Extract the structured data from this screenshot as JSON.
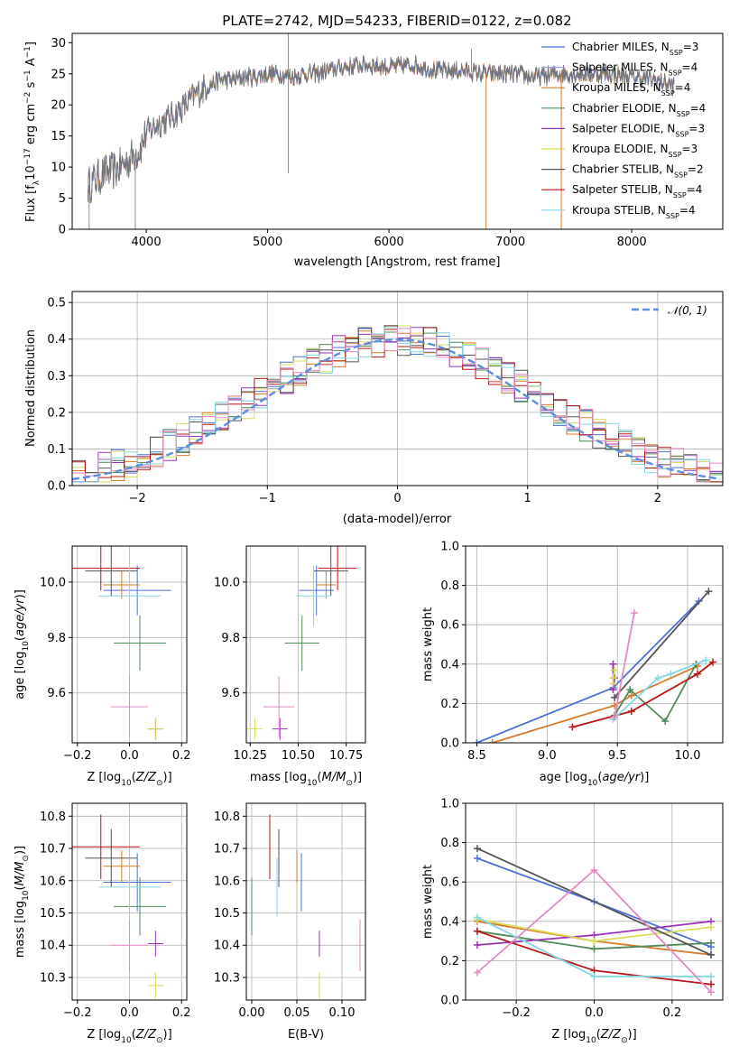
{
  "figure_title": "PLATE=2742, MJD=54233, FIBERID=0122, z=0.082",
  "colors": {
    "chabrier_miles": "#4c72d8",
    "salpeter_miles": "#9aa7d6",
    "kroupa_miles": "#d87b2a",
    "chabrier_elodie": "#4f8b5a",
    "salpeter_elodie": "#9a32b8",
    "kroupa_elodie": "#d8dc58",
    "chabrier_stelib": "#555555",
    "salpeter_stelib": "#b81616",
    "kroupa_stelib": "#86d6e3",
    "pink": "#e28ac3",
    "normal": "#5b8fe0"
  },
  "chart_data": [
    {
      "id": "spectrum",
      "type": "line",
      "xlabel": "wavelength [Angstrom, rest frame]",
      "ylabel": "Flux [fλ10⁻¹⁷ erg cm⁻² s⁻¹ A⁻¹]",
      "xlim": [
        3390,
        8750
      ],
      "ylim": [
        0,
        31.5
      ],
      "xticks": [
        4000,
        5000,
        6000,
        7000,
        8000
      ],
      "yticks": [
        0,
        5,
        10,
        15,
        20,
        25,
        30
      ],
      "spectrum_anchors": [
        [
          3520,
          7
        ],
        [
          3650,
          9
        ],
        [
          3750,
          9.5
        ],
        [
          3850,
          11
        ],
        [
          3950,
          13
        ],
        [
          4000,
          15.5
        ],
        [
          4100,
          17
        ],
        [
          4200,
          18
        ],
        [
          4300,
          19.5
        ],
        [
          4400,
          21.5
        ],
        [
          4500,
          23
        ],
        [
          4600,
          24
        ],
        [
          4700,
          24
        ],
        [
          4800,
          24.5
        ],
        [
          4900,
          24.5
        ],
        [
          5000,
          25
        ],
        [
          5100,
          25
        ],
        [
          5200,
          24.5
        ],
        [
          5300,
          25
        ],
        [
          5400,
          25
        ],
        [
          5500,
          25.5
        ],
        [
          5600,
          26
        ],
        [
          5800,
          26.5
        ],
        [
          6000,
          26
        ],
        [
          6200,
          26.5
        ],
        [
          6400,
          25.5
        ],
        [
          6600,
          25.5
        ],
        [
          6800,
          25
        ],
        [
          7000,
          25
        ],
        [
          7200,
          24.5
        ],
        [
          7400,
          25
        ],
        [
          7600,
          25
        ],
        [
          7800,
          25
        ],
        [
          8000,
          24.5
        ],
        [
          8200,
          24
        ],
        [
          8350,
          23
        ]
      ],
      "legend": [
        {
          "label": "Chabrier MILES, N",
          "sub": "SSP",
          "count": "=3",
          "color": "#4c72d8"
        },
        {
          "label": "Salpeter MILES, N",
          "sub": "SSP",
          "count": "=4",
          "color": "#9aa7d6"
        },
        {
          "label": "Kroupa MILES, N",
          "sub": "SSP",
          "count": "=4",
          "color": "#d87b2a"
        },
        {
          "label": "Chabrier ELODIE, N",
          "sub": "SSP",
          "count": "=4",
          "color": "#4f8b5a"
        },
        {
          "label": "Salpeter ELODIE, N",
          "sub": "SSP",
          "count": "=3",
          "color": "#9a32b8"
        },
        {
          "label": "Kroupa ELODIE, N",
          "sub": "SSP",
          "count": "=3",
          "color": "#d8dc58"
        },
        {
          "label": "Chabrier STELIB, N",
          "sub": "SSP",
          "count": "=2",
          "color": "#555555"
        },
        {
          "label": "Salpeter STELIB, N",
          "sub": "SSP",
          "count": "=4",
          "color": "#b81616"
        },
        {
          "label": "Kroupa STELIB, N",
          "sub": "SSP",
          "count": "=4",
          "color": "#86d6e3"
        }
      ]
    },
    {
      "id": "residuals",
      "type": "line",
      "xlabel": "(data-model)/error",
      "ylabel": "Normed distribution",
      "xlim": [
        -2.5,
        2.5
      ],
      "ylim": [
        0,
        0.53
      ],
      "xticks": [
        -2,
        -1,
        0,
        1,
        2
      ],
      "yticks": [
        0.0,
        0.1,
        0.2,
        0.3,
        0.4,
        0.5
      ],
      "legend_label": "𝒩(0, 1)",
      "bin_width": 0.1,
      "grid": true
    },
    {
      "id": "age_vs_Z",
      "type": "scatter",
      "xlabel": "Z [log₁₀(Z/Z⊙)]",
      "ylabel": "age  [log₁₀(age/yr)]",
      "xlim": [
        -0.22,
        0.22
      ],
      "ylim": [
        9.42,
        10.13
      ],
      "xticks": [
        -0.2,
        0.0,
        0.2
      ],
      "yticks": [
        9.6,
        9.8,
        10.0
      ],
      "grid": true
    },
    {
      "id": "age_vs_mass",
      "type": "scatter",
      "xlabel": "mass [log₁₀(M/M⊙)]",
      "xlim": [
        10.23,
        10.85
      ],
      "ylim": [
        9.42,
        10.13
      ],
      "xticks": [
        10.25,
        10.5,
        10.75
      ],
      "yticks": [
        9.6,
        9.8,
        10.0
      ],
      "grid": true
    },
    {
      "id": "weight_vs_age",
      "type": "line",
      "xlabel": "age  [log₁₀(age/yr)]",
      "ylabel": "mass weight",
      "xlim": [
        8.42,
        10.25
      ],
      "ylim": [
        0,
        1.0
      ],
      "xticks": [
        8.5,
        9.0,
        9.5,
        10.0
      ],
      "yticks": [
        0.0,
        0.2,
        0.4,
        0.6,
        0.8,
        1.0
      ],
      "grid": true
    },
    {
      "id": "mass_vs_Z",
      "type": "scatter",
      "xlabel": "Z [log₁₀(Z/Z⊙)]",
      "ylabel": "mass [log₁₀(M/M⊙)]",
      "xlim": [
        -0.22,
        0.22
      ],
      "ylim": [
        10.23,
        10.84
      ],
      "xticks": [
        -0.2,
        0.0,
        0.2
      ],
      "yticks": [
        10.3,
        10.4,
        10.5,
        10.6,
        10.7,
        10.8
      ],
      "grid": true
    },
    {
      "id": "mass_vs_ebv",
      "type": "scatter",
      "xlabel": "E(B-V)",
      "xlim": [
        -0.006,
        0.126
      ],
      "ylim": [
        10.23,
        10.84
      ],
      "xticks": [
        0.0,
        0.05,
        0.1
      ],
      "yticks": [
        10.3,
        10.4,
        10.5,
        10.6,
        10.7,
        10.8
      ],
      "grid": true
    },
    {
      "id": "weight_vs_Z",
      "type": "line",
      "xlabel": "Z [log₁₀(Z/Z⊙)]",
      "ylabel": "mass weight",
      "xlim": [
        -0.33,
        0.33
      ],
      "ylim": [
        0,
        1.0
      ],
      "xticks": [
        -0.2,
        0.0,
        0.2
      ],
      "yticks": [
        0.0,
        0.2,
        0.4,
        0.6,
        0.8,
        1.0
      ],
      "grid": true
    }
  ],
  "models": [
    {
      "color": "#4c72d8",
      "age": 9.97,
      "age_err": 0.09,
      "Z": 0.03,
      "Z_err": 0.13,
      "mass": 10.595,
      "mass_err": 0.09,
      "ebv": 0.055,
      "ebv_err": 0.09,
      "age_w": [
        [
          8.5,
          0.0
        ],
        [
          9.47,
          0.28
        ],
        [
          10.08,
          0.72
        ]
      ],
      "Z_w": [
        [
          -0.3,
          0.72
        ],
        [
          0.0,
          0.5
        ],
        [
          0.3,
          0.27
        ]
      ]
    },
    {
      "color": "#d87b2a",
      "age": 9.99,
      "age_err": 0.05,
      "Z": -0.03,
      "Z_err": 0.07,
      "mass": 10.645,
      "mass_err": 0.05,
      "ebv": 0.05,
      "ebv_err": 0.05,
      "age_w": [
        [
          8.61,
          0.0
        ],
        [
          9.48,
          0.19
        ],
        [
          9.6,
          0.24
        ],
        [
          10.07,
          0.39
        ]
      ],
      "Z_w": [
        [
          -0.3,
          0.4
        ],
        [
          0.0,
          0.3
        ],
        [
          0.3,
          0.23
        ]
      ]
    },
    {
      "color": "#4f8b5a",
      "age": 9.78,
      "age_err": 0.1,
      "Z": 0.04,
      "Z_err": 0.1,
      "mass": 10.52,
      "mass_err": 0.09,
      "ebv": 0.0,
      "ebv_err": 0.08,
      "age_w": [
        [
          9.48,
          0.14
        ],
        [
          9.59,
          0.27
        ],
        [
          9.84,
          0.11
        ],
        [
          10.06,
          0.4
        ]
      ],
      "Z_w": [
        [
          -0.3,
          0.35
        ],
        [
          0.0,
          0.26
        ],
        [
          0.3,
          0.29
        ]
      ]
    },
    {
      "color": "#9a32b8",
      "age": 9.47,
      "age_err": 0.04,
      "Z": 0.1,
      "Z_err": 0.03,
      "mass": 10.405,
      "mass_err": 0.04,
      "ebv": 0.075,
      "ebv_err": 0.04,
      "age_w": [
        [
          9.47,
          0.4
        ],
        [
          9.47,
          0.27
        ],
        [
          9.48,
          0.33
        ]
      ],
      "Z_w": [
        [
          -0.3,
          0.28
        ],
        [
          0.0,
          0.33
        ],
        [
          0.3,
          0.4
        ]
      ]
    },
    {
      "color": "#d8dc58",
      "age": 9.47,
      "age_err": 0.04,
      "Z": 0.1,
      "Z_err": 0.03,
      "mass": 10.275,
      "mass_err": 0.04,
      "ebv": 0.075,
      "ebv_err": 0.04,
      "age_w": [
        [
          9.47,
          0.3
        ],
        [
          9.47,
          0.33
        ],
        [
          9.48,
          0.37
        ]
      ],
      "Z_w": [
        [
          -0.3,
          0.41
        ],
        [
          0.0,
          0.3
        ],
        [
          0.3,
          0.37
        ]
      ]
    },
    {
      "color": "#555555",
      "age": 10.04,
      "age_err": 0.09,
      "Z": -0.07,
      "Z_err": 0.1,
      "mass": 10.67,
      "mass_err": 0.09,
      "ebv": 0.03,
      "ebv_err": 0.09,
      "age_w": [
        [
          9.48,
          0.23
        ],
        [
          10.15,
          0.77
        ]
      ],
      "Z_w": [
        [
          -0.3,
          0.77
        ],
        [
          0.3,
          0.23
        ]
      ]
    },
    {
      "color": "#b81616",
      "age": 10.05,
      "age_err": 0.08,
      "Z": -0.11,
      "Z_err": 0.15,
      "mass": 10.705,
      "mass_err": 0.1,
      "ebv": 0.02,
      "ebv_err": 0.08,
      "age_w": [
        [
          9.18,
          0.08
        ],
        [
          9.6,
          0.16
        ],
        [
          10.07,
          0.35
        ],
        [
          10.18,
          0.41
        ]
      ],
      "Z_w": [
        [
          -0.3,
          0.35
        ],
        [
          0.0,
          0.15
        ],
        [
          0.3,
          0.08
        ]
      ]
    },
    {
      "color": "#86d6e3",
      "age": 9.95,
      "age_err": 0.11,
      "Z": 0.0,
      "Z_err": 0.12,
      "mass": 10.58,
      "mass_err": 0.09,
      "ebv": 0.028,
      "ebv_err": 0.07,
      "age_w": [
        [
          9.47,
          0.12
        ],
        [
          9.79,
          0.33
        ],
        [
          9.88,
          0.35
        ],
        [
          10.13,
          0.42
        ]
      ],
      "Z_w": [
        [
          -0.3,
          0.42
        ],
        [
          0.0,
          0.12
        ],
        [
          0.3,
          0.12
        ]
      ]
    },
    {
      "color": "#e28ac3",
      "age": 9.55,
      "age_err": 0.11,
      "Z": 0.0,
      "Z_err": 0.07,
      "mass": 10.4,
      "mass_err": 0.08,
      "ebv": 0.12,
      "ebv_err": 0.07,
      "age_w": [
        [
          9.48,
          0.13
        ],
        [
          9.62,
          0.66
        ]
      ],
      "Z_w": [
        [
          -0.3,
          0.14
        ],
        [
          0.0,
          0.66
        ],
        [
          0.3,
          0.04
        ]
      ]
    }
  ]
}
